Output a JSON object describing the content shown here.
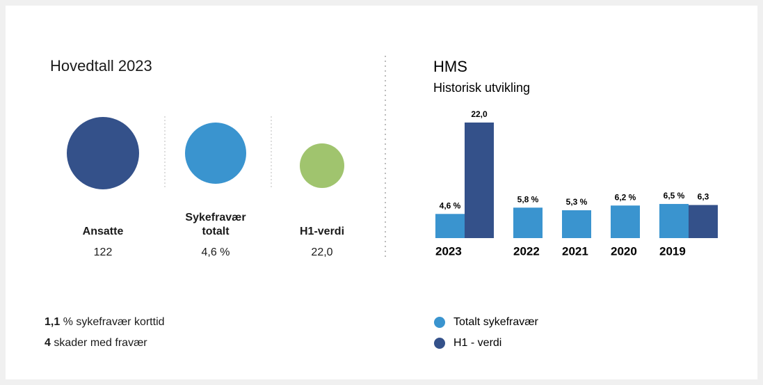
{
  "header": {
    "title": "Hovedtall 2023"
  },
  "key_figures": [
    {
      "label": "Ansatte",
      "value": "122"
    },
    {
      "label": "Sykefravær totalt",
      "value": "4,6 %"
    },
    {
      "label": "H1-verdi",
      "value": "22,0"
    }
  ],
  "notes": [
    {
      "value": "1,1",
      "text": "% sykefravær korttid"
    },
    {
      "value": "4",
      "text": "skader med fravær"
    }
  ],
  "chart_data": {
    "type": "bar",
    "title": "HMS",
    "subtitle": "Historisk utvikling",
    "categories": [
      "2023",
      "2022",
      "2021",
      "2020",
      "2019"
    ],
    "series": [
      {
        "name": "Totalt sykefravær",
        "color": "#3a94cf",
        "values": [
          4.6,
          5.8,
          5.3,
          6.2,
          6.5
        ],
        "value_labels": [
          "4,6 %",
          "5,8 %",
          "5,3 %",
          "6,2 %",
          "6,5 %"
        ]
      },
      {
        "name": "H1 - verdi",
        "color": "#34518a",
        "values": [
          22.0,
          null,
          null,
          null,
          6.3
        ],
        "value_labels": [
          "22,0",
          null,
          null,
          null,
          "6,3"
        ]
      }
    ],
    "ylim": [
      0,
      22
    ],
    "grid": false
  }
}
